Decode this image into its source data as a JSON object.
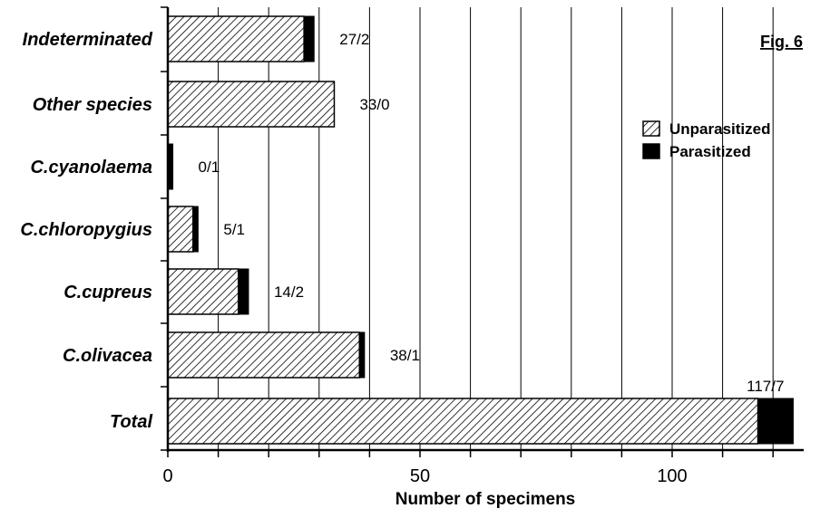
{
  "chart_data": {
    "type": "bar",
    "orientation": "horizontal",
    "stacked": true,
    "figure_label": "Fig. 6",
    "xlabel": "Number of specimens",
    "xlim": [
      0,
      125
    ],
    "xticks": [
      0,
      50,
      100
    ],
    "grid": true,
    "legend_position": "top-right",
    "categories": [
      "Indeterminated",
      "Other species",
      "C.cyanolaema",
      "C.chloropygius",
      "C.cupreus",
      "C.olivacea",
      "Total"
    ],
    "series": [
      {
        "name": "Unparasitized",
        "values": [
          27,
          33,
          0,
          5,
          14,
          38,
          117
        ],
        "pattern": "hatched",
        "color": "#000000"
      },
      {
        "name": "Parasitized",
        "values": [
          2,
          0,
          1,
          1,
          2,
          1,
          7
        ],
        "pattern": "solid",
        "color": "#000000"
      }
    ],
    "data_labels": [
      "27/2",
      "33/0",
      "0/1",
      "5/1",
      "14/2",
      "38/1",
      "117/7"
    ]
  }
}
